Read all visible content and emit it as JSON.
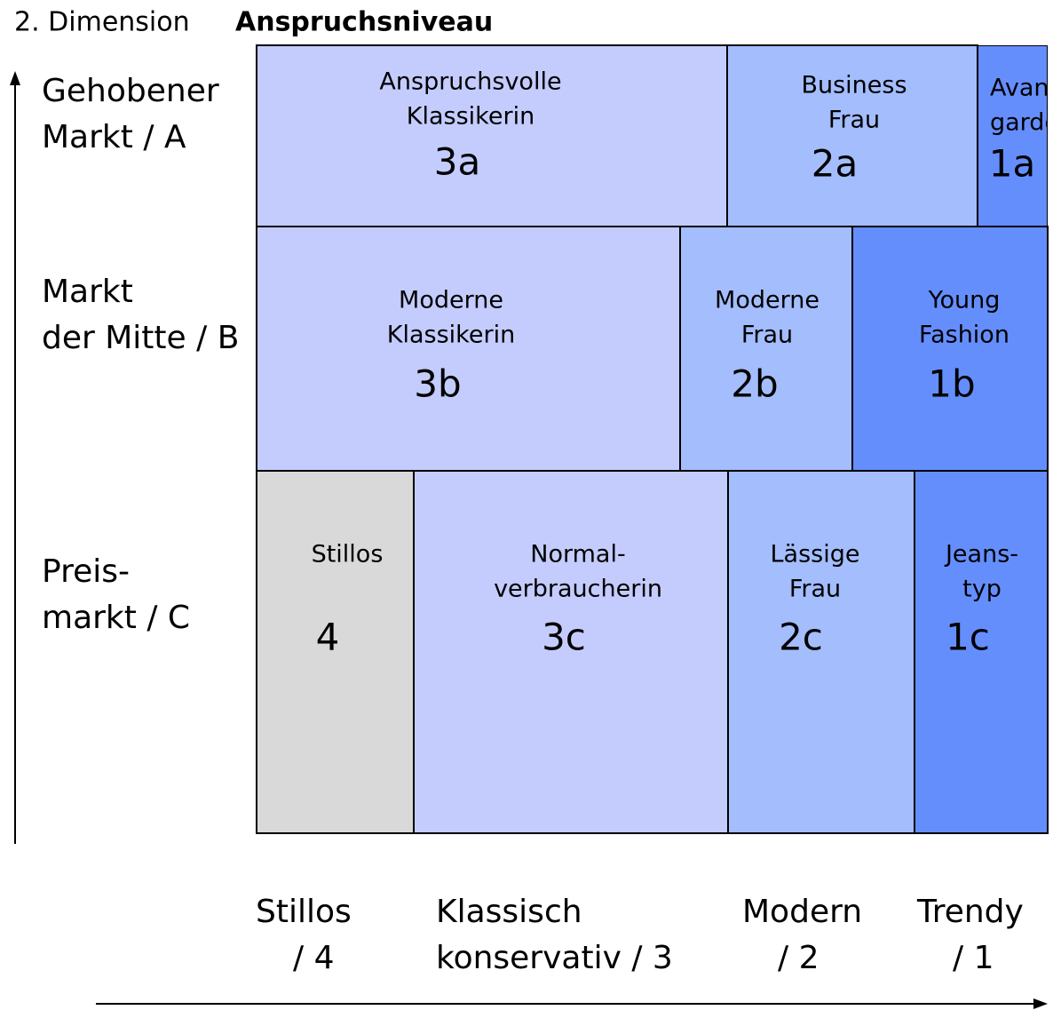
{
  "header": {
    "prefix": "2. Dimension",
    "title": "Anspruchsniveau"
  },
  "y_axis": [
    [
      "Gehobener",
      "Markt / A"
    ],
    [
      "Markt",
      "der Mitte / B"
    ],
    [
      "Preis-",
      "markt / C"
    ]
  ],
  "x_axis": [
    [
      "Stillos",
      "/ 4"
    ],
    [
      "Klassisch",
      "konservativ / 3"
    ],
    [
      "Modern",
      "/ 2"
    ],
    [
      "Trendy",
      "/ 1"
    ]
  ],
  "cells": [
    {
      "name": [
        "Anspruchsvolle",
        "Klassikerin"
      ],
      "code": "3a",
      "color": "#c4ccfd"
    },
    {
      "name": [
        "Business",
        "Frau"
      ],
      "code": "2a",
      "color": "#a3bdfd"
    },
    {
      "name": [
        "Avant",
        "garde"
      ],
      "code": "1a",
      "color": "#658efd"
    },
    {
      "name": [
        "Moderne",
        "Klassikerin"
      ],
      "code": "3b",
      "color": "#c4ccfd"
    },
    {
      "name": [
        "Moderne",
        "Frau"
      ],
      "code": "2b",
      "color": "#a3bdfd"
    },
    {
      "name": [
        "Young",
        "Fashion"
      ],
      "code": "1b",
      "color": "#658efd"
    },
    {
      "name": [
        "Stillos"
      ],
      "code": "4",
      "color": "#d9d9d9"
    },
    {
      "name": [
        "Normal-",
        "verbraucherin"
      ],
      "code": "3c",
      "color": "#c4ccfd"
    },
    {
      "name": [
        "Lässige",
        "Frau"
      ],
      "code": "2c",
      "color": "#a3bdfd"
    },
    {
      "name": [
        "Jeans-",
        "typ"
      ],
      "code": "1c",
      "color": "#658efd"
    }
  ]
}
